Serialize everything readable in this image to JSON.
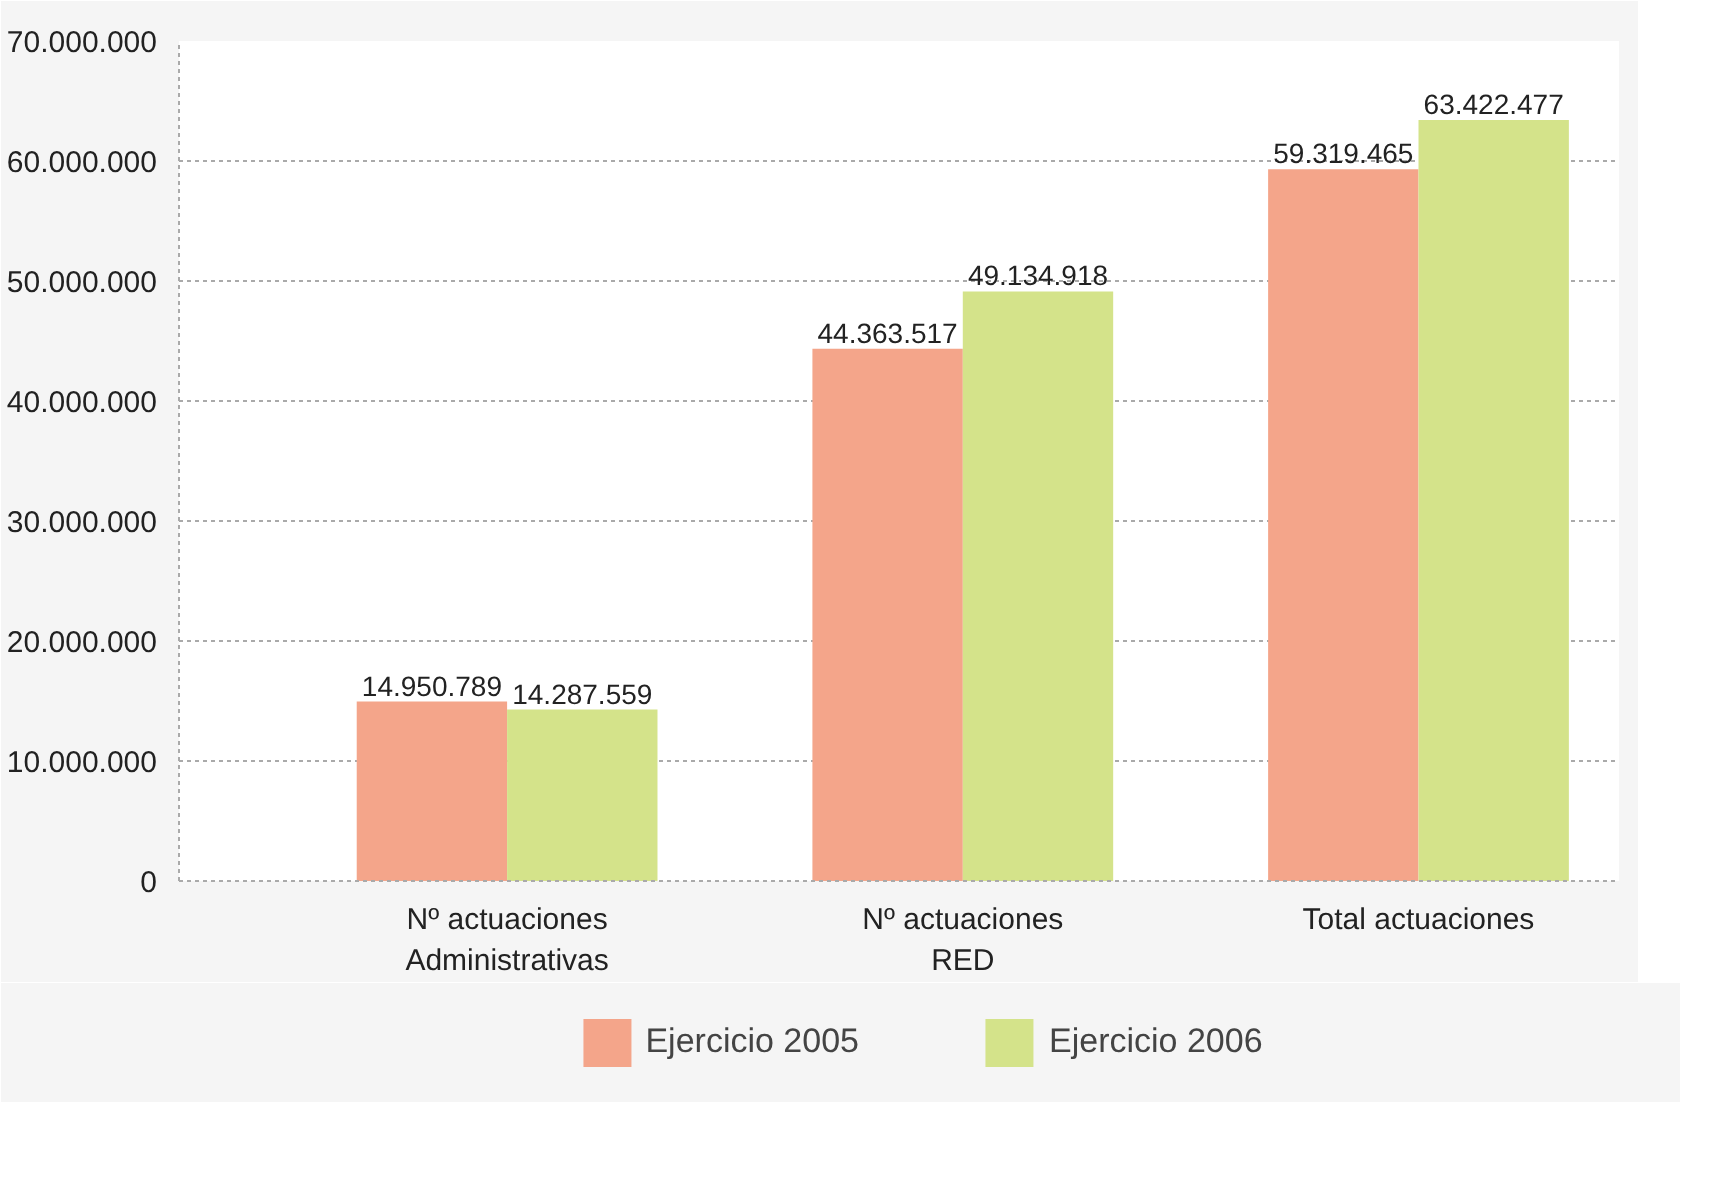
{
  "chart_data": {
    "type": "bar",
    "categories": [
      "Nº actuaciones\nAdministrativas",
      "Nº actuaciones\nRED",
      "Total actuaciones"
    ],
    "series": [
      {
        "name": "Ejercicio 2005",
        "color": "#f4a58a",
        "values": [
          14950789,
          44363517,
          59319465
        ],
        "value_labels": [
          "14.950.789",
          "44.363.517",
          "59.319.465"
        ]
      },
      {
        "name": "Ejercicio 2006",
        "color": "#d4e38a",
        "values": [
          14287559,
          49134918,
          63422477
        ],
        "value_labels": [
          "14.287.559",
          "49.134.918",
          "63.422.477"
        ]
      }
    ],
    "ylim": [
      0,
      70000000
    ],
    "yticks": [
      0,
      {
        "value": 10000000,
        "label": "10.000.000"
      },
      {
        "value": 20000000,
        "label": "20.000.000"
      },
      {
        "value": 30000000,
        "label": "30.000.000"
      },
      {
        "value": 40000000,
        "label": "40.000.000"
      },
      {
        "value": 50000000,
        "label": "50.000.000"
      },
      {
        "value": 60000000,
        "label": "60.000.000"
      },
      {
        "value": 70000000,
        "label": "70.000.000"
      }
    ],
    "grid": "y",
    "legend": "bottom"
  }
}
